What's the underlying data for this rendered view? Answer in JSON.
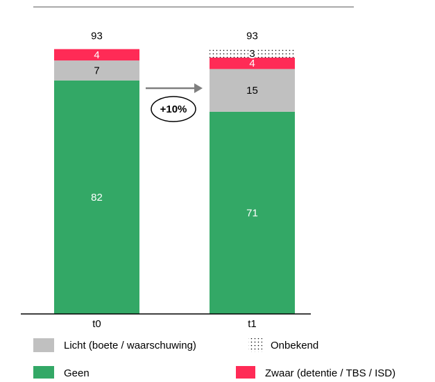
{
  "chart_data": {
    "type": "stacked_bar",
    "categories": [
      "t0",
      "t1"
    ],
    "series": [
      {
        "name": "Geen",
        "color": "#33a866",
        "label_color": "#ffffff",
        "values": [
          82,
          71
        ]
      },
      {
        "name": "Licht (boete / waarschuwing)",
        "color": "#c0c0c0",
        "label_color": "#000000",
        "values": [
          7,
          15
        ]
      },
      {
        "name": "Zwaar (detentie / TBS / ISD)",
        "color": "#ff2b56",
        "label_color": "#ffffff",
        "values": [
          4,
          4
        ]
      },
      {
        "name": "Onbekend",
        "color": "#000000",
        "pattern": "dots",
        "label_color": "#000000",
        "values": [
          null,
          3
        ]
      }
    ],
    "totals": [
      93,
      93
    ],
    "annotation": "+10%",
    "ylim": [
      0,
      100
    ]
  }
}
